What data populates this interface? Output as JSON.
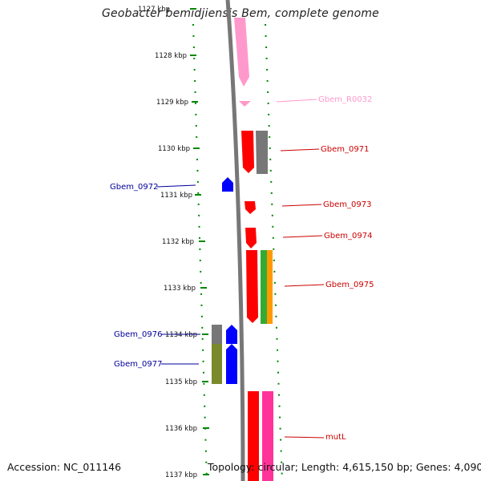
{
  "title": "Geobacter bemidjiensis Bem, complete genome",
  "footer": {
    "accession": "Accession: NC_011146",
    "summary": "Topology: circular; Length: 4,615,150 bp; Genes: 4,090"
  },
  "ruler": {
    "ticks": [
      "1127 kbp",
      "1128 kbp",
      "1129 kbp",
      "1130 kbp",
      "1131 kbp",
      "1132 kbp",
      "1133 kbp",
      "1134 kbp",
      "1135 kbp",
      "1136 kbp",
      "1137 kbp"
    ]
  },
  "colors": {
    "gene_red": "#ff0000",
    "rna_pink": "#ff99cc",
    "gene_blue": "#0000ff",
    "pseudo_gray": "#777777",
    "green": "#33aa33",
    "orange": "#ff9900",
    "olive": "#7a8a2a",
    "magenta": "#ff3399",
    "tick_green": "#008800",
    "label_blue": "#000099"
  },
  "genes": [
    {
      "label": "Gbem_R0032",
      "color": "#ff99cc"
    },
    {
      "label": "Gbem_0971",
      "color": "#cc0000"
    },
    {
      "label": "Gbem_0972",
      "color": "#000099"
    },
    {
      "label": "Gbem_0973",
      "color": "#cc0000"
    },
    {
      "label": "Gbem_0974",
      "color": "#cc0000"
    },
    {
      "label": "Gbem_0975",
      "color": "#cc0000"
    },
    {
      "label": "Gbem_0976",
      "color": "#000099"
    },
    {
      "label": "Gbem_0977",
      "color": "#000099"
    },
    {
      "label": "mutL",
      "color": "#cc0000"
    }
  ]
}
